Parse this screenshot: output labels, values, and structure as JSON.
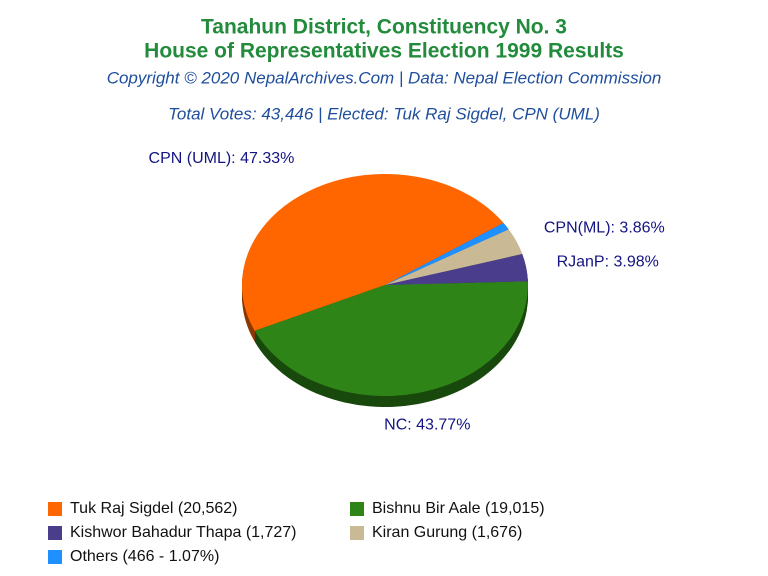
{
  "chart_data": {
    "type": "pie",
    "title": [
      "Tanahun District, Constituency No. 3",
      "House of Representatives Election 1999 Results"
    ],
    "subtitle": "Copyright © 2020 NepalArchives.Com | Data: Nepal Election Commission",
    "annotation": "Total Votes: 43,446 | Elected: Tuk Raj Sigdel, CPN (UML)",
    "categories": [
      "Tuk Raj Sigdel (20,562)",
      "Bishnu Bir Aale (19,015)",
      "Kishwor Bahadur Thapa (1,727)",
      "Kiran Gurung (1,676)",
      "Others (466 - 1.07%)"
    ],
    "values": [
      47.33,
      43.77,
      3.98,
      3.86,
      1.07
    ],
    "value_labels": [
      "CPN (UML): 47.33%",
      "NC: 43.77%",
      "RJanP: 3.98%",
      "CPN(ML): 3.86%",
      null
    ],
    "colors": [
      "#ff6600",
      "#2e8417",
      "#4a3d8c",
      "#c9b994",
      "#1e90ff"
    ]
  }
}
